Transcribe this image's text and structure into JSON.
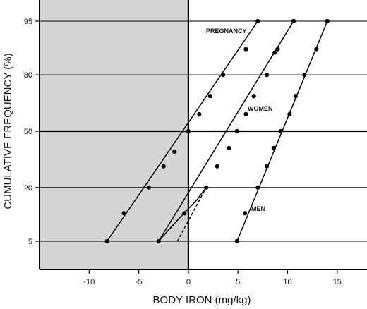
{
  "chart_data": {
    "type": "line",
    "title": "",
    "xlabel": "BODY IRON (mg/kg)",
    "ylabel": "CUMULATIVE FREQUENCY (%)",
    "xlim": [
      -15,
      18
    ],
    "y_scale": "probability",
    "y_ticks": [
      5,
      20,
      50,
      80,
      95
    ],
    "x_ticks": [
      -10,
      -5,
      0,
      5,
      10,
      15
    ],
    "x_tick_labels": [
      "-10",
      "-5",
      "0",
      "5",
      "10",
      "15"
    ],
    "y_tick_labels": [
      "5",
      "20",
      "50",
      "80",
      "95"
    ],
    "shaded_region": {
      "x_from": -15,
      "x_to": 0,
      "color": "#d4d4d4"
    },
    "grid": "horizontal lines at y ticks",
    "series": [
      {
        "name": "PREGNANCY",
        "points": [
          [
            -8.2,
            5
          ],
          [
            -6.5,
            11
          ],
          [
            -4,
            20
          ],
          [
            -2.5,
            30
          ],
          [
            -1.4,
            38
          ],
          [
            0,
            50
          ],
          [
            1.1,
            60
          ],
          [
            2.2,
            70
          ],
          [
            3.5,
            80
          ],
          [
            5.8,
            89
          ],
          [
            7,
            95
          ]
        ]
      },
      {
        "name": "WOMEN",
        "points": [
          [
            -3,
            5
          ],
          [
            -0.4,
            11
          ],
          [
            1.8,
            20
          ],
          [
            2.9,
            30
          ],
          [
            4.1,
            40
          ],
          [
            4.9,
            50
          ],
          [
            5.8,
            60
          ],
          [
            6.6,
            70
          ],
          [
            7.9,
            80
          ],
          [
            9,
            89
          ],
          [
            10.6,
            95
          ]
        ]
      },
      {
        "name": "MEN",
        "points": [
          [
            4.9,
            5
          ],
          [
            5.7,
            11
          ],
          [
            7,
            20
          ],
          [
            7.9,
            30
          ],
          [
            8.6,
            40
          ],
          [
            9.3,
            50
          ],
          [
            10.2,
            60
          ],
          [
            10.8,
            70
          ],
          [
            11.7,
            80
          ],
          [
            12.9,
            89
          ],
          [
            14,
            95
          ]
        ]
      }
    ],
    "extra_points": [
      [
        8.7,
        88
      ]
    ],
    "dashed_extension": [
      [
        -1.1,
        5
      ],
      [
        1.8,
        20
      ]
    ],
    "curve_link": [
      [
        -3,
        5
      ],
      [
        -2,
        7
      ],
      [
        -0.8,
        10
      ],
      [
        0.8,
        15
      ],
      [
        1.8,
        20
      ]
    ]
  }
}
